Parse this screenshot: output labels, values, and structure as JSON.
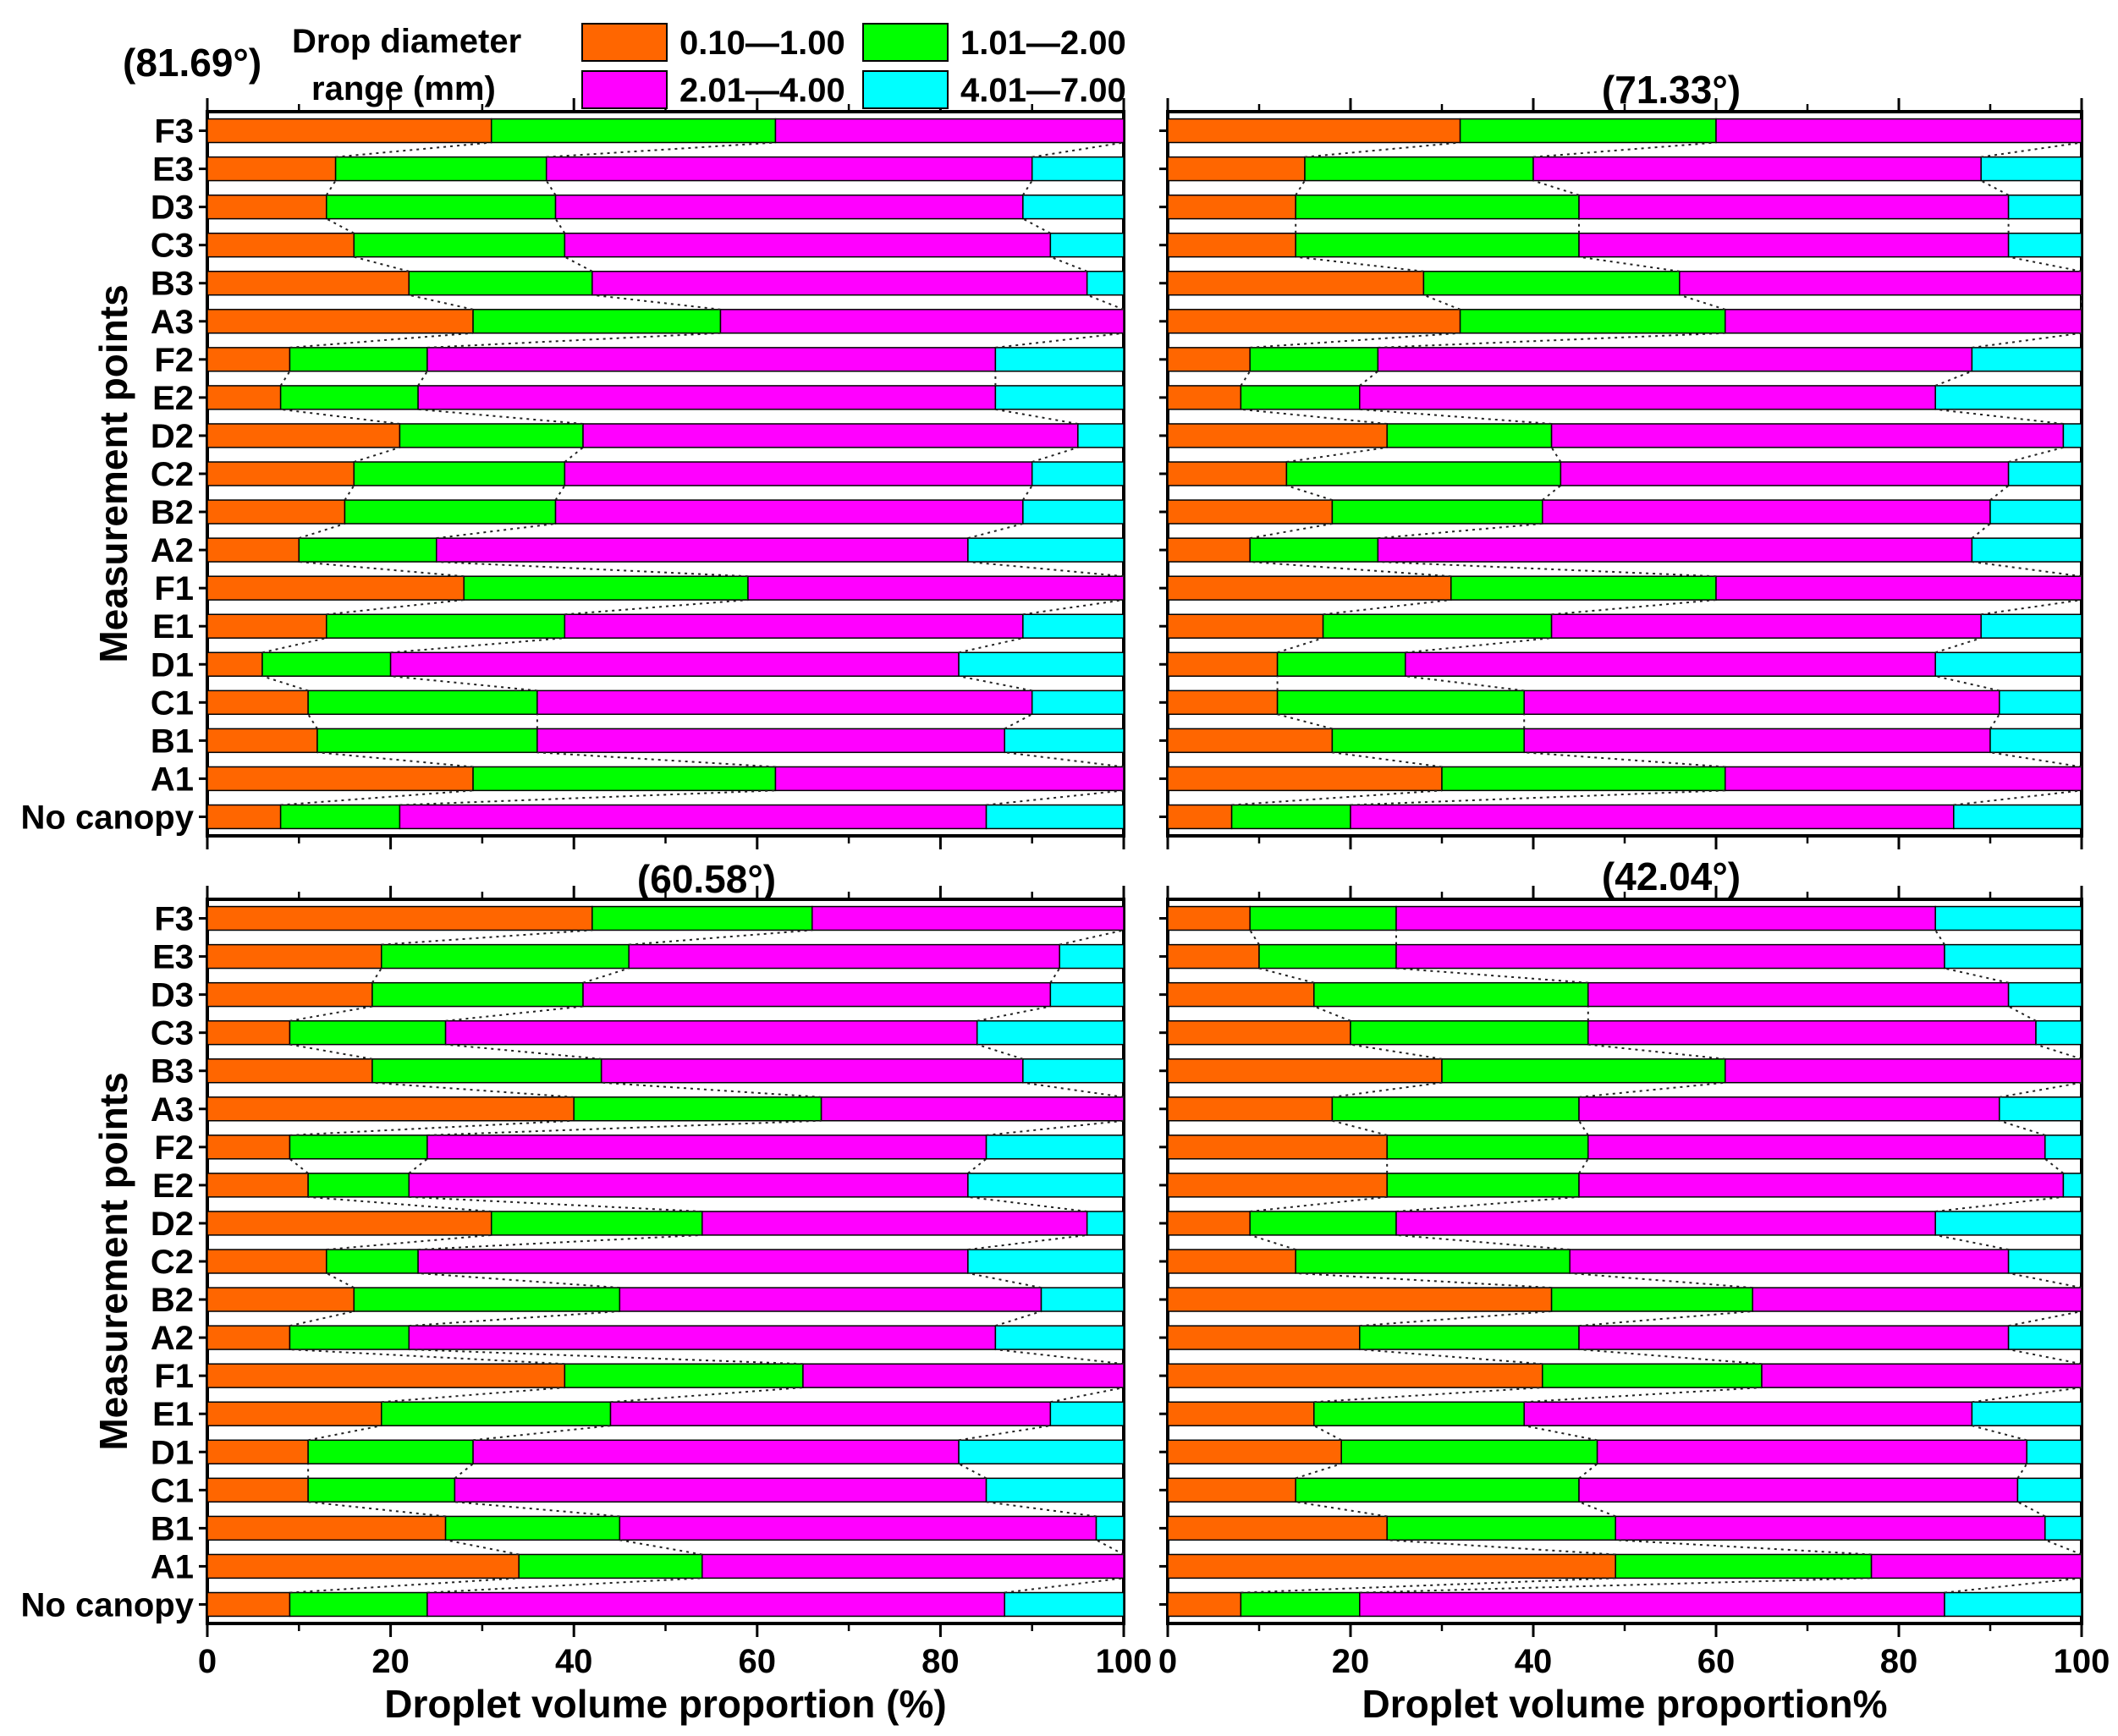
{
  "legend": {
    "title_line1": "Drop diameter",
    "title_line2": "range (mm)",
    "entries": [
      {
        "label": "0.10—1.00",
        "color": "#ff6600"
      },
      {
        "label": "1.01—2.00",
        "color": "#00ff00"
      },
      {
        "label": "2.01—4.00",
        "color": "#ff00ff"
      },
      {
        "label": "4.01—7.00",
        "color": "#00ffff"
      }
    ]
  },
  "chart_data": [
    {
      "type": "bar",
      "orientation": "horizontal",
      "stacked": true,
      "title": "(81.69°)",
      "xlabel": "",
      "ylabel": "Measurement points",
      "xlim": [
        0,
        100
      ],
      "xticks": [
        "0",
        "20",
        "40",
        "60",
        "80",
        "100"
      ],
      "categories": [
        "No canopy",
        "A1",
        "B1",
        "C1",
        "D1",
        "E1",
        "F1",
        "A2",
        "B2",
        "C2",
        "D2",
        "E2",
        "F2",
        "A3",
        "B3",
        "C3",
        "D3",
        "E3",
        "F3"
      ],
      "series": [
        {
          "name": "0.10—1.00",
          "values": [
            8,
            29,
            12,
            11,
            6,
            13,
            28,
            10,
            15,
            16,
            21,
            8,
            9,
            29,
            22,
            16,
            13,
            14,
            31
          ]
        },
        {
          "name": "1.01—2.00",
          "values": [
            13,
            33,
            24,
            25,
            14,
            26,
            31,
            15,
            23,
            23,
            20,
            15,
            15,
            27,
            20,
            23,
            25,
            23,
            31
          ]
        },
        {
          "name": "2.01—4.00",
          "values": [
            64,
            38,
            51,
            54,
            62,
            50,
            41,
            58,
            51,
            51,
            54,
            63,
            62,
            44,
            54,
            53,
            51,
            53,
            38
          ]
        },
        {
          "name": "4.01—7.00",
          "values": [
            15,
            0,
            13,
            10,
            18,
            11,
            0,
            17,
            11,
            10,
            5,
            14,
            14,
            0,
            4,
            8,
            11,
            10,
            0
          ]
        }
      ]
    },
    {
      "type": "bar",
      "orientation": "horizontal",
      "stacked": true,
      "title": "(71.33°)",
      "xlabel": "",
      "ylabel": "",
      "xlim": [
        0,
        100
      ],
      "xticks": [
        "0",
        "20",
        "40",
        "60",
        "80",
        "100"
      ],
      "categories": [
        "No canopy",
        "A1",
        "B1",
        "C1",
        "D1",
        "E1",
        "F1",
        "A2",
        "B2",
        "C2",
        "D2",
        "E2",
        "F2",
        "A3",
        "B3",
        "C3",
        "D3",
        "E3",
        "F3"
      ],
      "series": [
        {
          "name": "0.10—1.00",
          "values": [
            7,
            30,
            18,
            12,
            12,
            17,
            31,
            9,
            18,
            13,
            24,
            8,
            9,
            32,
            28,
            14,
            14,
            15,
            32
          ]
        },
        {
          "name": "1.01—2.00",
          "values": [
            13,
            31,
            21,
            27,
            14,
            25,
            29,
            14,
            23,
            30,
            18,
            13,
            14,
            29,
            28,
            31,
            31,
            25,
            28
          ]
        },
        {
          "name": "2.01—4.00",
          "values": [
            66,
            39,
            51,
            52,
            58,
            47,
            40,
            65,
            49,
            49,
            56,
            63,
            65,
            39,
            44,
            47,
            47,
            49,
            40
          ]
        },
        {
          "name": "4.01—7.00",
          "values": [
            14,
            0,
            10,
            9,
            16,
            11,
            0,
            12,
            10,
            8,
            2,
            16,
            12,
            0,
            0,
            8,
            8,
            11,
            0
          ]
        }
      ]
    },
    {
      "type": "bar",
      "orientation": "horizontal",
      "stacked": true,
      "title": "(60.58°)",
      "xlabel": "Droplet volume proportion (%)",
      "ylabel": "Measurement points",
      "xlim": [
        0,
        100
      ],
      "xticks": [
        "0",
        "20",
        "40",
        "60",
        "80",
        "100"
      ],
      "categories": [
        "No canopy",
        "A1",
        "B1",
        "C1",
        "D1",
        "E1",
        "F1",
        "A2",
        "B2",
        "C2",
        "D2",
        "E2",
        "F2",
        "A3",
        "B3",
        "C3",
        "D3",
        "E3",
        "F3"
      ],
      "series": [
        {
          "name": "0.10—1.00",
          "values": [
            9,
            34,
            26,
            11,
            11,
            19,
            39,
            9,
            16,
            13,
            31,
            11,
            9,
            40,
            18,
            9,
            18,
            19,
            42
          ]
        },
        {
          "name": "1.01—2.00",
          "values": [
            15,
            20,
            19,
            16,
            18,
            25,
            26,
            13,
            29,
            10,
            23,
            11,
            15,
            27,
            25,
            17,
            23,
            27,
            24
          ]
        },
        {
          "name": "2.01—4.00",
          "values": [
            63,
            46,
            52,
            58,
            53,
            48,
            35,
            64,
            46,
            60,
            42,
            61,
            61,
            33,
            46,
            58,
            51,
            47,
            34
          ]
        },
        {
          "name": "4.01—7.00",
          "values": [
            13,
            0,
            3,
            15,
            18,
            8,
            0,
            14,
            9,
            17,
            4,
            17,
            15,
            0,
            11,
            16,
            8,
            7,
            0
          ]
        }
      ]
    },
    {
      "type": "bar",
      "orientation": "horizontal",
      "stacked": true,
      "title": "(42.04°)",
      "xlabel": "Droplet volume proportion%",
      "ylabel": "",
      "xlim": [
        0,
        100
      ],
      "xticks": [
        "0",
        "20",
        "40",
        "60",
        "80",
        "100"
      ],
      "categories": [
        "No canopy",
        "A1",
        "B1",
        "C1",
        "D1",
        "E1",
        "F1",
        "A2",
        "B2",
        "C2",
        "D2",
        "E2",
        "F2",
        "A3",
        "B3",
        "C3",
        "D3",
        "E3",
        "F3"
      ],
      "series": [
        {
          "name": "0.10—1.00",
          "values": [
            8,
            49,
            24,
            14,
            19,
            16,
            41,
            21,
            42,
            14,
            9,
            24,
            24,
            18,
            30,
            20,
            16,
            10,
            9
          ]
        },
        {
          "name": "1.01—2.00",
          "values": [
            13,
            28,
            25,
            31,
            28,
            23,
            24,
            24,
            22,
            30,
            16,
            21,
            22,
            27,
            31,
            26,
            30,
            15,
            16
          ]
        },
        {
          "name": "2.01—4.00",
          "values": [
            64,
            23,
            47,
            48,
            47,
            49,
            35,
            47,
            36,
            48,
            59,
            53,
            50,
            46,
            39,
            49,
            46,
            60,
            59
          ]
        },
        {
          "name": "4.01—7.00",
          "values": [
            15,
            0,
            4,
            7,
            6,
            12,
            0,
            8,
            0,
            8,
            16,
            2,
            4,
            9,
            0,
            5,
            8,
            15,
            16
          ]
        }
      ]
    }
  ]
}
